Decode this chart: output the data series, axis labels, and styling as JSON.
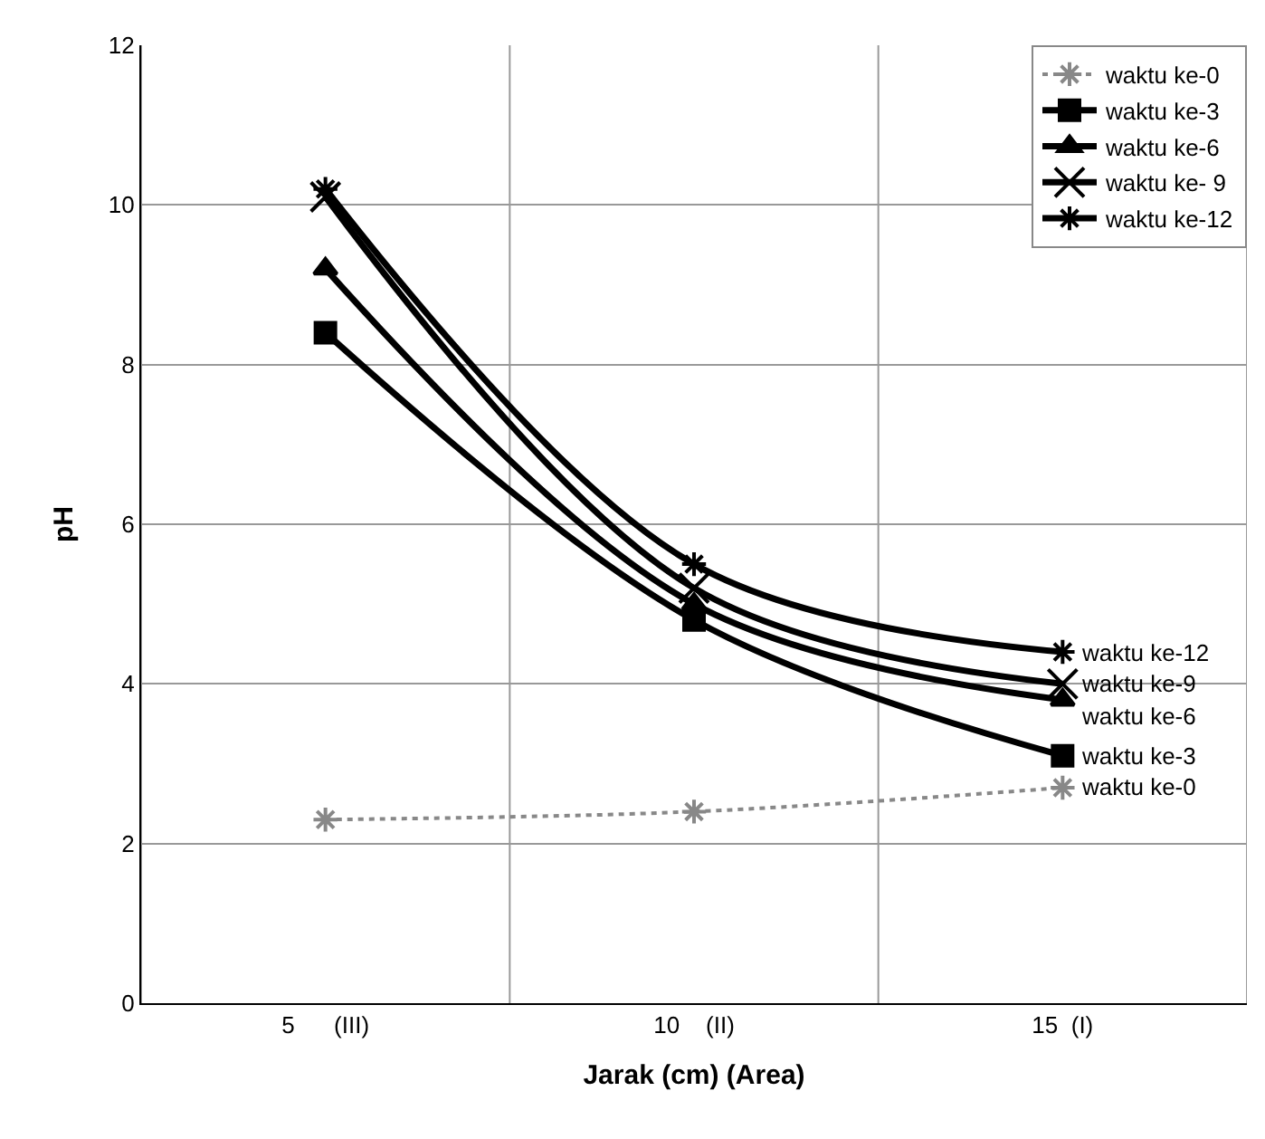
{
  "chart_data": {
    "type": "line",
    "xlabel": "Jarak (cm) (Area)",
    "ylabel": "pH",
    "categories": [
      "5      (III)",
      "10    (II)",
      "15  (I)"
    ],
    "ylim": [
      0,
      12
    ],
    "yticks": [
      0,
      2,
      4,
      6,
      8,
      10,
      12
    ],
    "grid": true,
    "legend": "top right",
    "series": [
      {
        "name": "waktu ke-0",
        "color": "#888888",
        "values": [
          2.3,
          2.4,
          2.7
        ],
        "marker": "cross",
        "line_style": "dotted"
      },
      {
        "name": "waktu ke-3",
        "color": "#000000",
        "values": [
          8.4,
          4.8,
          3.1
        ],
        "marker": "square",
        "line_style": "solid"
      },
      {
        "name": "waktu ke-6",
        "color": "#000000",
        "values": [
          9.2,
          5.0,
          3.8
        ],
        "marker": "triangle",
        "line_style": "solid"
      },
      {
        "name": "waktu ke- 9",
        "color": "#000000",
        "values": [
          10.1,
          5.2,
          4.0
        ],
        "marker": "x",
        "line_style": "solid"
      },
      {
        "name": "waktu ke-12",
        "color": "#000000",
        "values": [
          10.2,
          5.5,
          4.4
        ],
        "marker": "cross",
        "line_style": "solid"
      }
    ],
    "annotations": [
      {
        "text": "waktu ke-12",
        "x": "15  (I)",
        "y": 4.4
      },
      {
        "text": "waktu ke-9",
        "x": "15  (I)",
        "y": 4.0
      },
      {
        "text": "waktu ke-6",
        "x": "15  (I)",
        "y": 3.8
      },
      {
        "text": "waktu ke-3",
        "x": "15  (I)",
        "y": 3.1
      },
      {
        "text": "waktu ke-0",
        "x": "15  (I)",
        "y": 2.7
      }
    ]
  }
}
